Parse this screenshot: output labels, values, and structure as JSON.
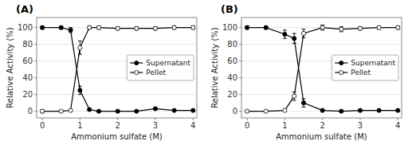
{
  "chart_data": [
    {
      "type": "line",
      "title": "(A)",
      "xlabel": "Ammonium sulfate (M)",
      "ylabel": "Relative Activity (%)",
      "x": [
        0,
        0.5,
        0.75,
        1.0,
        1.25,
        1.5,
        2.0,
        2.5,
        3.0,
        3.5,
        4.0
      ],
      "series": [
        {
          "name": "Supernatant",
          "color": "black",
          "marker": "circle",
          "values": [
            100,
            100,
            97,
            25,
            2,
            0,
            0,
            0,
            3,
            1,
            1
          ],
          "errors": [
            2,
            2,
            3,
            5,
            1,
            1,
            1,
            1,
            1,
            1,
            1
          ]
        },
        {
          "name": "Pellet",
          "color": "black",
          "marker": "open-circle",
          "values": [
            0,
            0,
            1,
            76,
            100,
            100,
            99,
            99,
            99,
            100,
            100
          ],
          "errors": [
            2,
            1,
            1,
            8,
            2,
            2,
            2,
            2,
            2,
            2,
            2
          ]
        }
      ],
      "xlim": [
        -0.15,
        4.1
      ],
      "ylim": [
        -8,
        112
      ],
      "xticks": [
        0,
        1,
        2,
        3,
        4
      ],
      "yticks": [
        0,
        20,
        40,
        60,
        80,
        100
      ],
      "legend": "right"
    },
    {
      "type": "line",
      "title": "(B)",
      "xlabel": "Ammonium sulfate (M)",
      "ylabel": "Relative Activity (%)",
      "x": [
        0,
        0.5,
        1.0,
        1.25,
        1.5,
        2.0,
        2.5,
        3.0,
        3.5,
        4.0
      ],
      "series": [
        {
          "name": "Supernatant",
          "color": "black",
          "marker": "circle",
          "values": [
            100,
            100,
            92,
            87,
            10,
            1,
            0,
            1,
            1,
            1
          ],
          "errors": [
            2,
            2,
            5,
            6,
            5,
            1,
            1,
            1,
            1,
            1
          ]
        },
        {
          "name": "Pellet",
          "color": "black",
          "marker": "open-circle",
          "values": [
            0,
            0,
            1,
            18,
            93,
            100,
            98,
            99,
            100,
            100
          ],
          "errors": [
            1,
            1,
            1,
            5,
            5,
            3,
            3,
            2,
            2,
            2
          ]
        }
      ],
      "xlim": [
        -0.15,
        4.1
      ],
      "ylim": [
        -8,
        112
      ],
      "xticks": [
        0,
        1,
        2,
        3,
        4
      ],
      "yticks": [
        0,
        20,
        40,
        60,
        80,
        100
      ],
      "legend": "right"
    }
  ]
}
